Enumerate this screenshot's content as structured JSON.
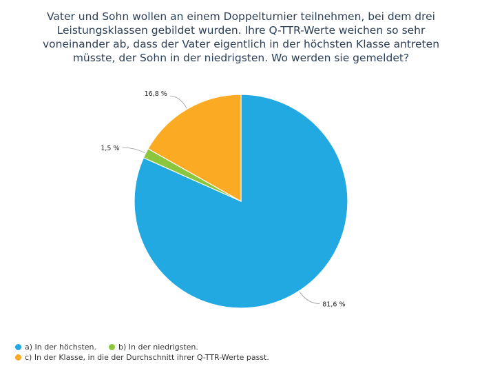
{
  "chart_data": {
    "type": "pie",
    "title": "Vater und Sohn wollen an einem Doppelturnier teilnehmen, bei dem drei Leistungsklassen gebildet wurden. Ihre Q-TTR-Werte weichen so sehr voneinander ab, dass der Vater eigentlich in der höchsten Klasse antreten müsste, der Sohn in der niedrigsten. Wo werden sie gemeldet?",
    "categories": [
      "a) In der höchsten.",
      "b) In der niedrigsten.",
      "c) In der Klasse, in die der Durchschnitt ihrer Q-TTR-Werte passt."
    ],
    "values": [
      81.6,
      1.5,
      16.8
    ],
    "value_labels": [
      "81,6 %",
      "1,5 %",
      "16,8 %"
    ],
    "colors": [
      "#22a9e1",
      "#8cc63e",
      "#fbaa23"
    ],
    "legend_position": "bottom-left"
  }
}
